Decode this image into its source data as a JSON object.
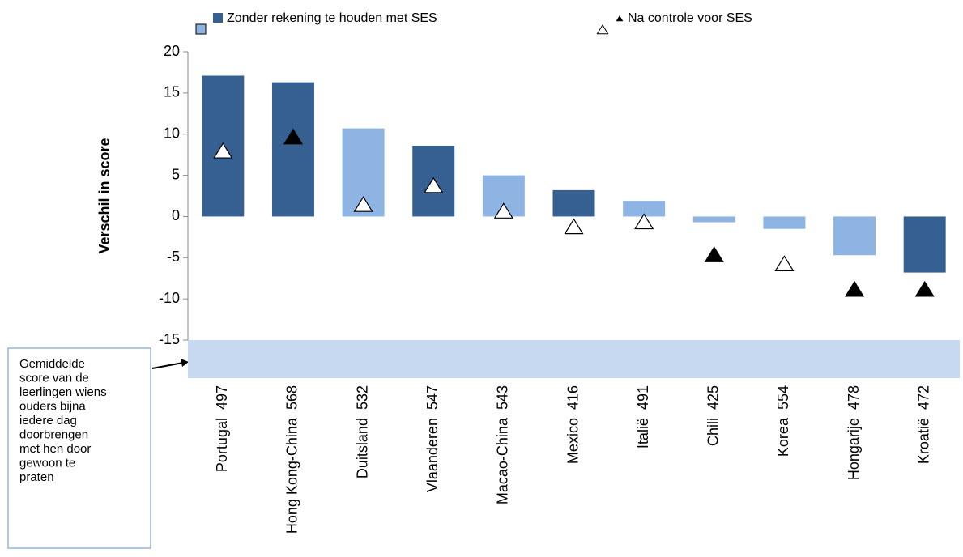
{
  "chart_data": {
    "type": "bar",
    "y_label": "Verschil in score",
    "categories": [
      "Portugal  497",
      "Hong Kong-China  568",
      "Duitsland  532",
      "Vlaanderen  547",
      "Macao-China  543",
      "Mexico  416",
      "Italië  491",
      "Chili  425",
      "Korea  554",
      "Hongarije  478",
      "Kroatië  472"
    ],
    "series": [
      {
        "name": "Zonder rekening te houden met SES",
        "color": "#376092",
        "colors": [
          "#376092",
          "#376092",
          "#8db4e2",
          "#376092",
          "#8db4e2",
          "#376092",
          "#8db4e2",
          "#8db4e2",
          "#8db4e2",
          "#8db4e2",
          "#376092"
        ],
        "values": [
          17.1,
          16.3,
          10.7,
          8.6,
          5.0,
          3.2,
          1.9,
          -0.7,
          -1.5,
          -4.7,
          -6.8
        ]
      },
      {
        "name": "Na controle voor SES",
        "color": "#000000",
        "marker": "triangle",
        "marker_colors": [
          "#ffffff",
          "#000000",
          "#ffffff",
          "#ffffff",
          "#ffffff",
          "#ffffff",
          "#ffffff",
          "#000000",
          "#ffffff",
          "#000000",
          "#000000"
        ],
        "values": [
          7.9,
          9.6,
          1.4,
          3.7,
          0.6,
          -1.3,
          -0.7,
          -4.7,
          -5.8,
          -8.9,
          -8.9
        ]
      }
    ],
    "ylim": [
      -15,
      20
    ],
    "yticks": [
      -15,
      -10,
      -5,
      0,
      5,
      10,
      15,
      20
    ],
    "annotation": {
      "lines": [
        "Gemiddelde",
        "score van de",
        "leerlingen wiens",
        "ouders bijna",
        "iedere dag",
        "doorbrengen",
        "met hen door",
        "gewoon te",
        "praten"
      ]
    }
  }
}
